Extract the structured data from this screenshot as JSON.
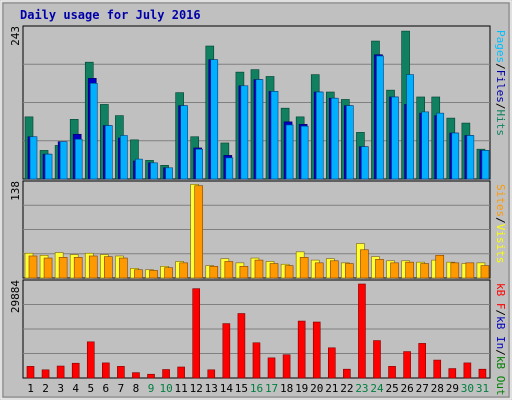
{
  "title": "Daily usage for July 2016",
  "colors": {
    "title": "#0000aa",
    "frame_bg": "#c0c0c0",
    "panel_bg": "#c0c0c0",
    "hits": "#107050",
    "files": "#0070ff",
    "files_light": "#00c0ff",
    "pages": "#0000c0",
    "visits": "#ffff33",
    "sites": "#ff9900",
    "kbin": "#0000c0",
    "kbout": "#008000",
    "kbf": "#ff0000",
    "day_normal": "#000000",
    "day_weekend": "#008040"
  },
  "chart_data": [
    {
      "type": "bar",
      "name": "hits-files-pages",
      "ymax_label": "243",
      "ylim": [
        0,
        243
      ],
      "legend": [
        {
          "label": "Pages",
          "color": "#00c0ff"
        },
        {
          "label": "Files",
          "color": "#0000aa"
        },
        {
          "label": "Hits",
          "color": "#108060"
        }
      ],
      "categories": [
        "1",
        "2",
        "3",
        "4",
        "5",
        "6",
        "7",
        "8",
        "9",
        "10",
        "11",
        "12",
        "13",
        "14",
        "15",
        "16",
        "17",
        "18",
        "19",
        "20",
        "21",
        "22",
        "23",
        "24",
        "25",
        "26",
        "27",
        "28",
        "29",
        "30",
        "31"
      ],
      "series": [
        {
          "name": "Hits",
          "values": [
            100,
            46,
            54,
            96,
            188,
            120,
            102,
            63,
            30,
            22,
            139,
            68,
            214,
            58,
            172,
            176,
            165,
            114,
            100,
            168,
            140,
            128,
            75,
            222,
            143,
            238,
            132,
            132,
            98,
            90,
            48
          ]
        },
        {
          "name": "Files",
          "values": [
            68,
            40,
            60,
            72,
            162,
            86,
            66,
            29,
            26,
            18,
            118,
            50,
            192,
            38,
            150,
            160,
            141,
            92,
            88,
            140,
            130,
            118,
            52,
            200,
            132,
            120,
            106,
            102,
            74,
            70,
            46
          ]
        },
        {
          "name": "Pages",
          "values": [
            68,
            40,
            60,
            64,
            154,
            86,
            70,
            32,
            26,
            18,
            118,
            48,
            192,
            34,
            150,
            160,
            141,
            87,
            85,
            140,
            130,
            118,
            52,
            198,
            132,
            168,
            108,
            106,
            74,
            70,
            46
          ]
        }
      ]
    },
    {
      "type": "bar",
      "name": "visits-sites",
      "ymax_label": "138",
      "ylim": [
        0,
        138
      ],
      "legend": [
        {
          "label": "Sites",
          "color": "#ff9900"
        },
        {
          "label": "/",
          "color": "#000000"
        },
        {
          "label": "Visits",
          "color": "#ffff00"
        }
      ],
      "categories": [
        "1",
        "2",
        "3",
        "4",
        "5",
        "6",
        "7",
        "8",
        "9",
        "10",
        "11",
        "12",
        "13",
        "14",
        "15",
        "16",
        "17",
        "18",
        "19",
        "20",
        "21",
        "22",
        "23",
        "24",
        "25",
        "26",
        "27",
        "28",
        "29",
        "30",
        "31"
      ],
      "series": [
        {
          "name": "Visits",
          "values": [
            36,
            33,
            37,
            34,
            36,
            34,
            32,
            14,
            12,
            17,
            24,
            136,
            18,
            28,
            22,
            29,
            24,
            20,
            38,
            26,
            28,
            22,
            50,
            31,
            25,
            25,
            23,
            26,
            23,
            21,
            22
          ]
        },
        {
          "name": "Sites",
          "values": [
            32,
            29,
            30,
            30,
            32,
            31,
            29,
            12,
            11,
            15,
            22,
            134,
            17,
            24,
            17,
            26,
            21,
            18,
            30,
            22,
            25,
            21,
            41,
            27,
            22,
            23,
            21,
            33,
            22,
            22,
            18
          ]
        }
      ]
    },
    {
      "type": "bar",
      "name": "kbytes",
      "ymax_label": "29884",
      "ylim": [
        0,
        29884
      ],
      "legend": [
        {
          "label": "kB F",
          "color": "#ff0000"
        },
        {
          "label": "/",
          "color": "#000000"
        },
        {
          "label": "kB In",
          "color": "#0000c0"
        },
        {
          "label": "/",
          "color": "#000000"
        },
        {
          "label": "kB Out",
          "color": "#008000"
        }
      ],
      "categories": [
        "1",
        "2",
        "3",
        "4",
        "5",
        "6",
        "7",
        "8",
        "9",
        "10",
        "11",
        "12",
        "13",
        "14",
        "15",
        "16",
        "17",
        "18",
        "19",
        "20",
        "21",
        "22",
        "23",
        "24",
        "25",
        "26",
        "27",
        "28",
        "29",
        "30",
        "31"
      ],
      "series": [
        {
          "name": "kB F",
          "values": [
            3700,
            2600,
            3800,
            4700,
            11500,
            4800,
            3700,
            1700,
            1200,
            2700,
            3500,
            28400,
            2600,
            17300,
            20500,
            11200,
            6400,
            7400,
            18100,
            17800,
            9600,
            2800,
            29884,
            11900,
            3700,
            8400,
            11000,
            5700,
            3000,
            4800,
            2800
          ]
        }
      ]
    }
  ],
  "weekend_days": [
    "9",
    "10",
    "16",
    "17",
    "23",
    "24",
    "30",
    "31"
  ]
}
